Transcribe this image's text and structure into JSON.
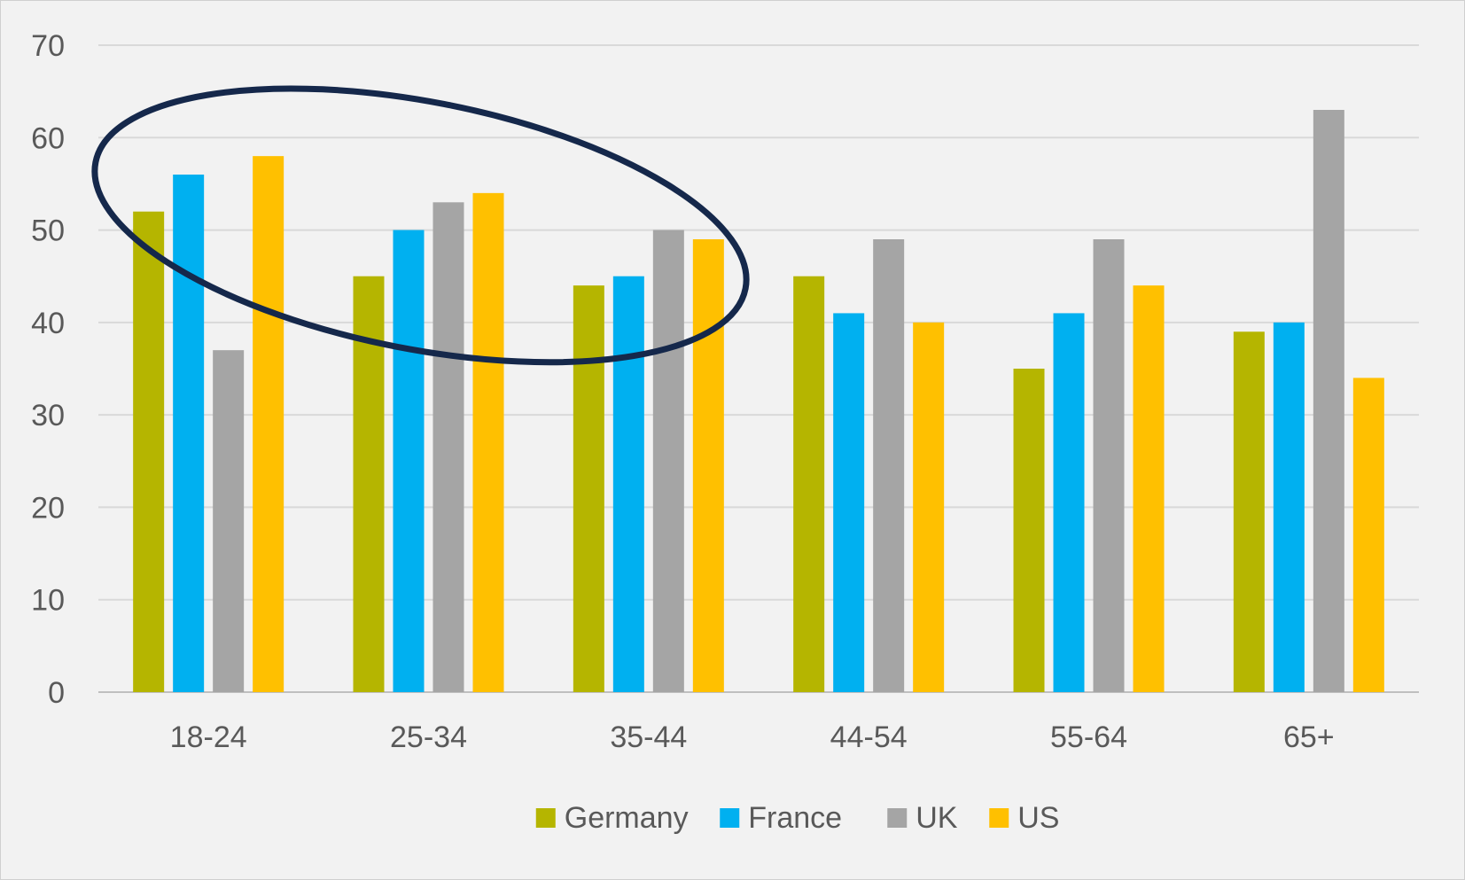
{
  "chart_data": {
    "type": "bar",
    "categories": [
      "18-24",
      "25-34",
      "35-44",
      "44-54",
      "55-64",
      "65+"
    ],
    "series": [
      {
        "name": "Germany",
        "color": "#b5b500",
        "values": [
          52,
          45,
          44,
          45,
          35,
          39
        ]
      },
      {
        "name": "France",
        "color": "#00b0f0",
        "values": [
          56,
          50,
          45,
          41,
          41,
          40
        ]
      },
      {
        "name": "UK",
        "color": "#a5a5a5",
        "values": [
          37,
          53,
          50,
          49,
          49,
          63
        ]
      },
      {
        "name": "US",
        "color": "#ffc000",
        "values": [
          58,
          54,
          49,
          40,
          44,
          34
        ]
      }
    ],
    "ylim": [
      0,
      70
    ],
    "yticks": [
      0,
      10,
      20,
      30,
      40,
      50,
      60,
      70
    ],
    "title": "",
    "xlabel": "",
    "ylabel": "",
    "grid": true,
    "legend_position": "bottom",
    "annotation": {
      "shape": "ellipse",
      "color": "#15284b",
      "encloses_categories": [
        "18-24",
        "25-34",
        "35-44"
      ],
      "y_range": [
        40,
        61
      ]
    },
    "colors": {
      "background": "#f2f2f2",
      "gridline": "#d9d9d9",
      "axis": "#bfbfbf",
      "text": "#595959"
    }
  }
}
